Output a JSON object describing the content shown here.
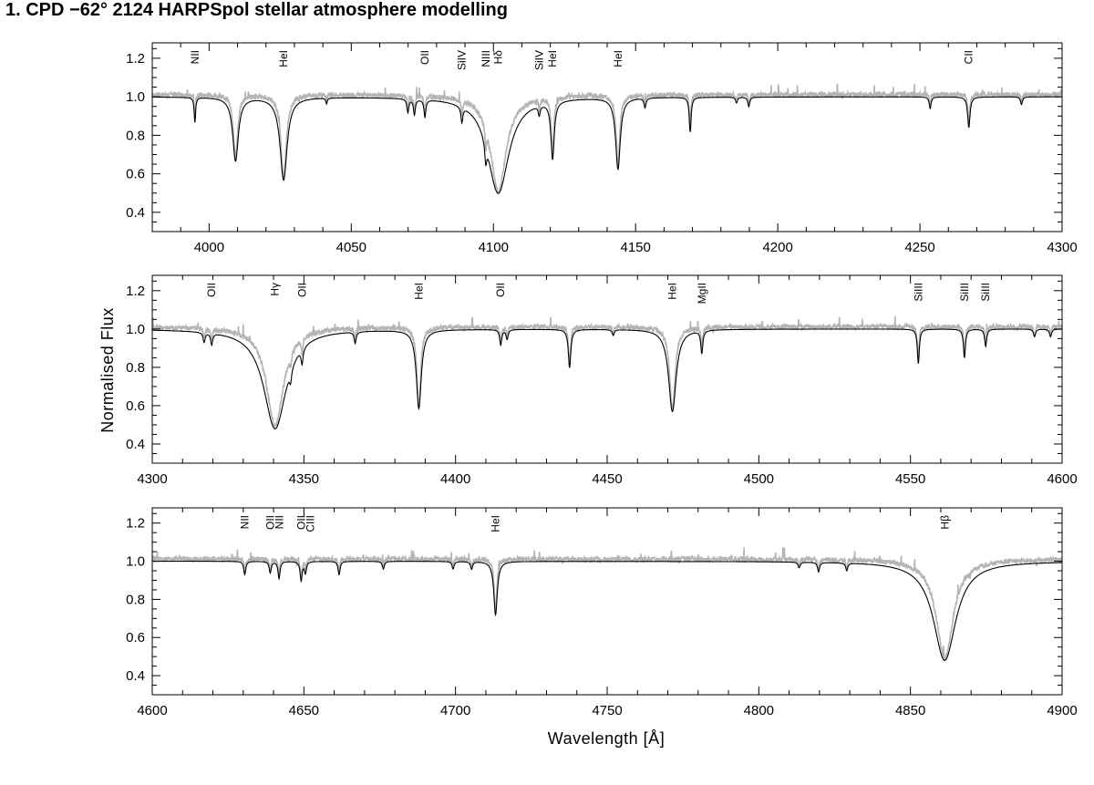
{
  "title": "1. CPD −62° 2124 HARPSpol stellar atmosphere modelling",
  "chart_data": [
    {
      "type": "line",
      "xlim": [
        3980,
        4300
      ],
      "ylim": [
        0.3,
        1.28
      ],
      "xticks": [
        4000,
        4050,
        4100,
        4150,
        4200,
        4250,
        4300
      ],
      "yticks": [
        "0.4",
        "0.6",
        "0.8",
        "1.0",
        "1.2"
      ],
      "xlabel": "",
      "ylabel": "",
      "series": [
        {
          "color": "#b4b4b4",
          "role": "observed"
        },
        {
          "color": "#000000",
          "role": "model"
        }
      ],
      "lines": [
        {
          "wl": 3995.0,
          "depth": 0.13,
          "width": 0.3,
          "label": "NII"
        },
        {
          "wl": 4009.3,
          "depth": 0.33,
          "width": 1.2
        },
        {
          "wl": 4026.2,
          "depth": 0.43,
          "width": 1.5,
          "label": "HeI"
        },
        {
          "wl": 4041.3,
          "depth": 0.03,
          "width": 0.3
        },
        {
          "wl": 4069.9,
          "depth": 0.07,
          "width": 0.4
        },
        {
          "wl": 4072.2,
          "depth": 0.08,
          "width": 0.4
        },
        {
          "wl": 4075.9,
          "depth": 0.09,
          "width": 0.4,
          "label": "OII"
        },
        {
          "wl": 4088.9,
          "depth": 0.08,
          "width": 0.4,
          "label": "SiIV"
        },
        {
          "wl": 4097.3,
          "depth": 0.1,
          "width": 0.4,
          "label": "NIII"
        },
        {
          "wl": 4101.7,
          "depth": 0.5,
          "width": 4.5,
          "label": "Hδ"
        },
        {
          "wl": 4116.1,
          "depth": 0.05,
          "width": 0.4,
          "label": "SiIV"
        },
        {
          "wl": 4120.8,
          "depth": 0.3,
          "width": 0.7,
          "label": "HeI"
        },
        {
          "wl": 4143.8,
          "depth": 0.37,
          "width": 1.0,
          "label": "HeI"
        },
        {
          "wl": 4153.3,
          "depth": 0.05,
          "width": 0.4
        },
        {
          "wl": 4169.2,
          "depth": 0.18,
          "width": 0.4
        },
        {
          "wl": 4185.5,
          "depth": 0.03,
          "width": 0.4
        },
        {
          "wl": 4189.8,
          "depth": 0.05,
          "width": 0.4
        },
        {
          "wl": 4253.6,
          "depth": 0.06,
          "width": 0.4
        },
        {
          "wl": 4267.2,
          "depth": 0.16,
          "width": 0.5,
          "label": "CII"
        },
        {
          "wl": 4285.7,
          "depth": 0.04,
          "width": 0.4
        }
      ]
    },
    {
      "type": "line",
      "xlim": [
        4300,
        4600
      ],
      "ylim": [
        0.3,
        1.28
      ],
      "xticks": [
        4300,
        4350,
        4400,
        4450,
        4500,
        4550,
        4600
      ],
      "yticks": [
        "0.4",
        "0.6",
        "0.8",
        "1.0",
        "1.2"
      ],
      "xlabel": "",
      "ylabel": "Normalised Flux",
      "series": [
        {
          "color": "#b4b4b4",
          "role": "observed"
        },
        {
          "color": "#000000",
          "role": "model"
        }
      ],
      "lines": [
        {
          "wl": 4317.1,
          "depth": 0.05,
          "width": 0.4
        },
        {
          "wl": 4319.6,
          "depth": 0.06,
          "width": 0.4,
          "label": "OII"
        },
        {
          "wl": 4340.5,
          "depth": 0.52,
          "width": 4.5,
          "label": "Hγ"
        },
        {
          "wl": 4345.6,
          "depth": 0.06,
          "width": 0.4
        },
        {
          "wl": 4349.4,
          "depth": 0.08,
          "width": 0.4,
          "label": "OII"
        },
        {
          "wl": 4366.9,
          "depth": 0.06,
          "width": 0.4
        },
        {
          "wl": 4387.9,
          "depth": 0.41,
          "width": 1.0,
          "label": "HeI"
        },
        {
          "wl": 4414.9,
          "depth": 0.08,
          "width": 0.4,
          "label": "OII"
        },
        {
          "wl": 4417.0,
          "depth": 0.05,
          "width": 0.4
        },
        {
          "wl": 4437.6,
          "depth": 0.2,
          "width": 0.5
        },
        {
          "wl": 4452.0,
          "depth": 0.03,
          "width": 0.4
        },
        {
          "wl": 4471.5,
          "depth": 0.43,
          "width": 1.5,
          "label": "HeI"
        },
        {
          "wl": 4481.2,
          "depth": 0.12,
          "width": 0.4,
          "label": "MgII"
        },
        {
          "wl": 4552.6,
          "depth": 0.18,
          "width": 0.4,
          "label": "SiIII"
        },
        {
          "wl": 4567.8,
          "depth": 0.15,
          "width": 0.4,
          "label": "SiIII"
        },
        {
          "wl": 4574.8,
          "depth": 0.09,
          "width": 0.4,
          "label": "SiIII"
        },
        {
          "wl": 4590.9,
          "depth": 0.04,
          "width": 0.4
        },
        {
          "wl": 4596.2,
          "depth": 0.04,
          "width": 0.4
        }
      ]
    },
    {
      "type": "line",
      "xlim": [
        4600,
        4900
      ],
      "ylim": [
        0.3,
        1.28
      ],
      "xticks": [
        4600,
        4650,
        4700,
        4750,
        4800,
        4850,
        4900
      ],
      "yticks": [
        "0.4",
        "0.6",
        "0.8",
        "1.0",
        "1.2"
      ],
      "xlabel": "Wavelength [Å]",
      "ylabel": "",
      "series": [
        {
          "color": "#b4b4b4",
          "role": "observed"
        },
        {
          "color": "#000000",
          "role": "model"
        }
      ],
      "lines": [
        {
          "wl": 4630.5,
          "depth": 0.07,
          "width": 0.4,
          "label": "NII"
        },
        {
          "wl": 4638.9,
          "depth": 0.06,
          "width": 0.4,
          "label": "OII"
        },
        {
          "wl": 4641.8,
          "depth": 0.09,
          "width": 0.4,
          "label": "NII"
        },
        {
          "wl": 4649.1,
          "depth": 0.1,
          "width": 0.4,
          "label": "OII"
        },
        {
          "wl": 4650.5,
          "depth": 0.06,
          "width": 0.4,
          "label": "CIII"
        },
        {
          "wl": 4661.6,
          "depth": 0.07,
          "width": 0.4
        },
        {
          "wl": 4676.2,
          "depth": 0.04,
          "width": 0.4
        },
        {
          "wl": 4699.2,
          "depth": 0.04,
          "width": 0.4
        },
        {
          "wl": 4705.3,
          "depth": 0.04,
          "width": 0.4
        },
        {
          "wl": 4713.2,
          "depth": 0.28,
          "width": 0.7,
          "label": "HeI"
        },
        {
          "wl": 4813.3,
          "depth": 0.03,
          "width": 0.4
        },
        {
          "wl": 4819.7,
          "depth": 0.05,
          "width": 0.4
        },
        {
          "wl": 4829.0,
          "depth": 0.04,
          "width": 0.4
        },
        {
          "wl": 4861.3,
          "depth": 0.52,
          "width": 4.5,
          "label": "Hβ"
        }
      ]
    }
  ]
}
